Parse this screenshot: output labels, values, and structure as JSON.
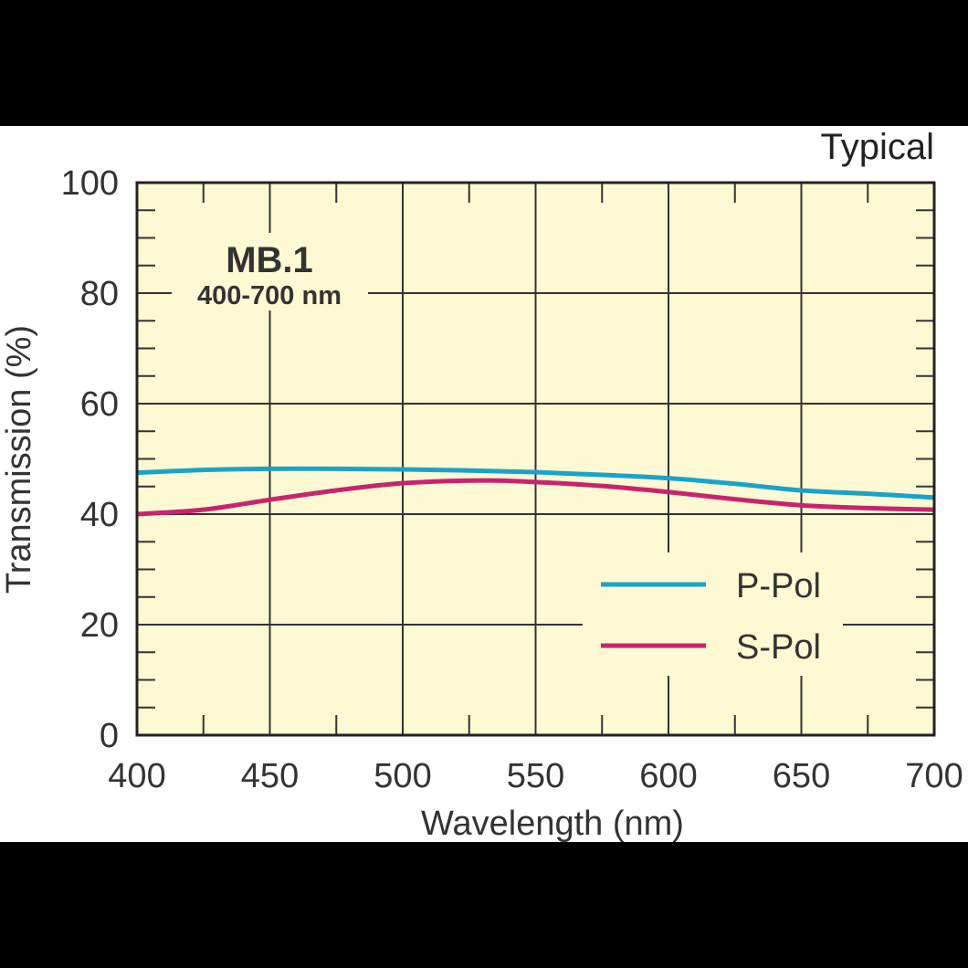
{
  "chart_data": {
    "type": "line",
    "corner_label": "Typical",
    "annotation_title": "MB.1",
    "annotation_subtitle": "400-700 nm",
    "xlabel": "Wavelength (nm)",
    "ylabel": "Transmission (%)",
    "xlim": [
      400,
      700
    ],
    "ylim": [
      0,
      100
    ],
    "xticks": [
      400,
      450,
      500,
      550,
      600,
      650,
      700
    ],
    "yticks": [
      0,
      20,
      40,
      60,
      80,
      100
    ],
    "grid": true,
    "legend_placement": "bottom-right",
    "plot_background": "#fdf9d3",
    "series": [
      {
        "name": "P-Pol",
        "color": "#1aa3c8",
        "x": [
          400,
          425,
          450,
          475,
          500,
          525,
          550,
          575,
          600,
          625,
          650,
          675,
          700
        ],
        "y": [
          47.5,
          48.0,
          48.2,
          48.2,
          48.1,
          47.9,
          47.6,
          47.1,
          46.5,
          45.5,
          44.3,
          43.7,
          43.0
        ]
      },
      {
        "name": "S-Pol",
        "color": "#c8246e",
        "x": [
          400,
          425,
          450,
          475,
          500,
          530,
          550,
          575,
          600,
          625,
          650,
          675,
          700
        ],
        "y": [
          40.0,
          40.8,
          42.6,
          44.3,
          45.6,
          46.1,
          45.8,
          45.1,
          44.0,
          42.7,
          41.6,
          41.1,
          40.8
        ]
      }
    ]
  }
}
